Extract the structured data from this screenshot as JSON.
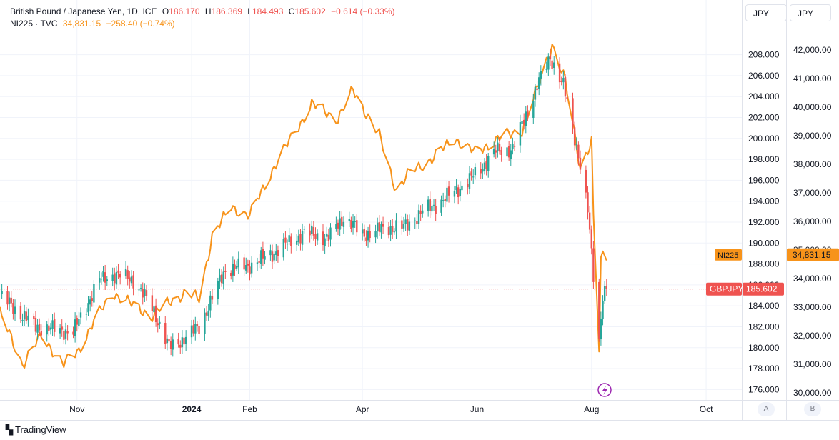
{
  "legend": {
    "main": {
      "title": "British Pound / Japanese Yen, 1D, ICE",
      "open_label": "O",
      "open": "186.170",
      "high_label": "H",
      "high": "186.369",
      "low_label": "L",
      "low": "184.493",
      "close_label": "C",
      "close": "185.602",
      "change": "−0.614 (−0.33%)"
    },
    "compare": {
      "title": "NI225 · TVC",
      "value": "34,831.15",
      "change": "−258.40 (−0.74%)"
    }
  },
  "axes": {
    "left_currency": "JPY",
    "right_currency": "JPY",
    "left_ticks": [
      "208.000",
      "206.000",
      "204.000",
      "202.000",
      "200.000",
      "198.000",
      "196.000",
      "194.000",
      "192.000",
      "190.000",
      "188.000",
      "186.000",
      "184.000",
      "182.000",
      "180.000",
      "178.000",
      "176.000"
    ],
    "right_ticks": [
      "42,000.00",
      "41,000.00",
      "40,000.00",
      "39,000.00",
      "38,000.00",
      "37,000.00",
      "36,000.00",
      "35,000.00",
      "34,000.00",
      "33,000.00",
      "32,000.00",
      "31,000.00",
      "30,000.00"
    ],
    "x_ticks": [
      "Nov",
      "2024",
      "Feb",
      "Apr",
      "Jun",
      "Aug",
      "Oct"
    ],
    "scale_buttons": [
      "A",
      "B"
    ]
  },
  "badges": {
    "ni225_label": "NI225",
    "ni225_value": "34,831.15",
    "gbpjpy_label": "GBPJPY",
    "gbpjpy_value": "185.602"
  },
  "branding": {
    "name": "TradingView"
  },
  "colors": {
    "up": "#26a69a",
    "down": "#ef5350",
    "compare": "#f7931a",
    "grid": "#f0f3fa",
    "text": "#131722"
  },
  "chart_data": {
    "type": "line",
    "x_start": "2023-09-21",
    "x_end": "2024-10-20",
    "series": [
      {
        "name": "GBPJPY",
        "axis": "left",
        "style": "candles",
        "x": [
          "2023-09-22",
          "2023-10-10",
          "2023-10-30",
          "2023-11-13",
          "2023-11-21",
          "2023-12-01",
          "2023-12-12",
          "2023-12-20",
          "2023-12-29",
          "2024-01-05",
          "2024-01-19",
          "2024-01-31",
          "2024-02-13",
          "2024-03-01",
          "2024-03-14",
          "2024-03-22",
          "2024-04-01",
          "2024-04-15",
          "2024-04-23",
          "2024-05-03",
          "2024-05-13",
          "2024-05-28",
          "2024-06-11",
          "2024-06-20",
          "2024-07-03",
          "2024-07-10",
          "2024-07-17",
          "2024-07-25",
          "2024-07-30",
          "2024-08-05",
          "2024-08-07",
          "2024-08-09"
        ],
        "y": [
          184.8,
          182.0,
          181.5,
          186.5,
          187.0,
          186.5,
          183.5,
          180.0,
          181.0,
          182.0,
          187.5,
          187.8,
          189.0,
          191.0,
          190.5,
          192.5,
          190.8,
          191.5,
          191.5,
          193.0,
          194.0,
          196.0,
          198.8,
          199.0,
          205.0,
          207.8,
          205.0,
          198.5,
          193.0,
          180.8,
          185.2,
          185.6
        ]
      },
      {
        "name": "NI225",
        "axis": "right",
        "style": "line",
        "x": [
          "2023-09-21",
          "2023-10-03",
          "2023-10-13",
          "2023-10-25",
          "2023-11-01",
          "2023-11-10",
          "2023-11-20",
          "2023-11-30",
          "2023-12-11",
          "2023-12-20",
          "2023-12-29",
          "2024-01-05",
          "2024-01-12",
          "2024-01-22",
          "2024-02-01",
          "2024-02-13",
          "2024-02-22",
          "2024-03-05",
          "2024-03-19",
          "2024-03-27",
          "2024-04-10",
          "2024-04-19",
          "2024-04-26",
          "2024-05-08",
          "2024-05-20",
          "2024-05-31",
          "2024-06-12",
          "2024-06-25",
          "2024-07-04",
          "2024-07-11",
          "2024-07-18",
          "2024-07-26",
          "2024-08-01",
          "2024-08-02",
          "2024-08-05",
          "2024-08-06",
          "2024-08-09"
        ],
        "y": [
          32800,
          31000,
          32000,
          31000,
          31400,
          32500,
          33500,
          33100,
          32700,
          33200,
          33500,
          33300,
          35500,
          36500,
          36200,
          37800,
          38800,
          40100,
          39600,
          40600,
          39000,
          37100,
          37700,
          38200,
          38900,
          38400,
          38900,
          39200,
          40800,
          42200,
          40900,
          37900,
          38800,
          36100,
          31500,
          34700,
          34831
        ]
      }
    ],
    "left_ylim": [
      175.0,
      210.5
    ],
    "right_ylim": [
      29750,
      42750
    ],
    "grid": true,
    "legend_position": "top-left"
  }
}
